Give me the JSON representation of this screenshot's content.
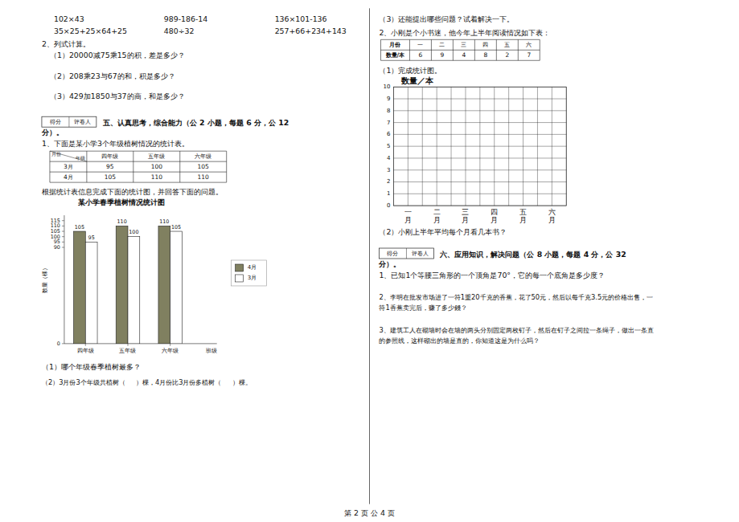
{
  "texts": {
    "math_row1": [
      "102×43",
      "989-186-14",
      "136×101-136"
    ],
    "math_row2": [
      "35×25+25×64+25",
      "480÷32",
      "257+66+234+143"
    ],
    "section2_title": "2、列式计算。",
    "section2_q1": "（1）20000减75乘15的积，差是多少？",
    "section2_q2": "（2）208乘23与67的和，积是多少？",
    "section2_q3": "（3）429加1850与37的商，和是多少？",
    "score_labels_left": [
      "得分",
      "评卷人"
    ],
    "section5_title": "五、认真思考，综合能力（公 2 小题，每题 6 分，公 12",
    "section5_subtitle": "分）。",
    "section5_q1_intro": "1、下面是某小学3个年级植树情况的统计表。",
    "table1": {
      "header_month": "月份",
      "header_grade": "年级",
      "columns": [
        "四年级",
        "五年级",
        "六年级"
      ],
      "rows": [
        [
          "3月",
          "95",
          "100",
          "105"
        ],
        [
          "4月",
          "105",
          "110",
          "110"
        ]
      ]
    },
    "chart_instruction": "根据统计表信息完成下面的统计图，并回答下面的问题。",
    "section5_q1_sub1": "（1）哪个年级春季植树最多？",
    "section5_q1_sub2": "（2）3月份3个年级共植树（     ）棵，4月份比3月份多植树（     ）棵。",
    "section_q3": "（3）还能提出哪些问题？试着解决一下。",
    "section2_intro": "2、小刚是个小书迷，他今年上半年阅读情况如下表：",
    "table2": {
      "months": [
        "月份",
        "一",
        "二",
        "三",
        "四",
        "五",
        "六"
      ],
      "values": [
        "数量/本",
        "6",
        "9",
        "4",
        "8",
        "2",
        "7"
      ]
    },
    "chart2_sub1": "（1）完成统计图。",
    "chart2_sub2": "（2）小刚上半年平均每个月看几本书？",
    "score_labels_right": [
      "得分",
      "评卷人"
    ],
    "section6_title": "六、应用知识，解决问题（公 8 小题，每题 4 分，公 32",
    "section6_subtitle": "分）。",
    "section6_q1": "1、已知1个等腰三角形的一个顶角是70°，它的每一个底角是多少度？",
    "section6_q2_line1": "2、李明在批发市场进了一符1重20千克的香蕉，花了50元，然后以每千克3.5元的价格出售，一",
    "section6_q2_line2": "符1香蕉卖完后，赚了多少錢？",
    "section6_q3_line1": "3、建筑工人在砌墙时会在墙的两头分别固定两枚钉子，然后在钉子之间拉一条绳子，做出一条直",
    "section6_q3_line2": "的参照线，这样砌出的墙是直的，你知道这是为什么吗？",
    "page_footer": "第 2 页 公 4 页"
  },
  "chart_data": [
    {
      "type": "bar",
      "title": "某小学春季植树情况统计图",
      "x_label": "班级",
      "y_label": "数量（棵）",
      "categories": [
        "四年级",
        "五年级",
        "六年级"
      ],
      "series": [
        {
          "name": "4月",
          "color": "#808060",
          "values": [
            105,
            110,
            110
          ]
        },
        {
          "name": "3月",
          "color": "#ffffff",
          "values": [
            95,
            100,
            105
          ]
        }
      ],
      "ylim": [
        0,
        120
      ],
      "yticks": [
        0,
        90,
        95,
        100,
        105,
        110,
        115
      ],
      "data_labels": true,
      "legend": "right"
    },
    {
      "type": "bar",
      "title": "数量／本",
      "categories": [
        "一\n月",
        "二\n月",
        "三\n月",
        "四\n月",
        "五\n月",
        "六\n月"
      ],
      "ylim": [
        0,
        10
      ],
      "yticks": [
        0,
        1,
        2,
        3,
        4,
        5,
        6,
        7,
        8,
        9,
        10
      ],
      "grid": true
    }
  ]
}
